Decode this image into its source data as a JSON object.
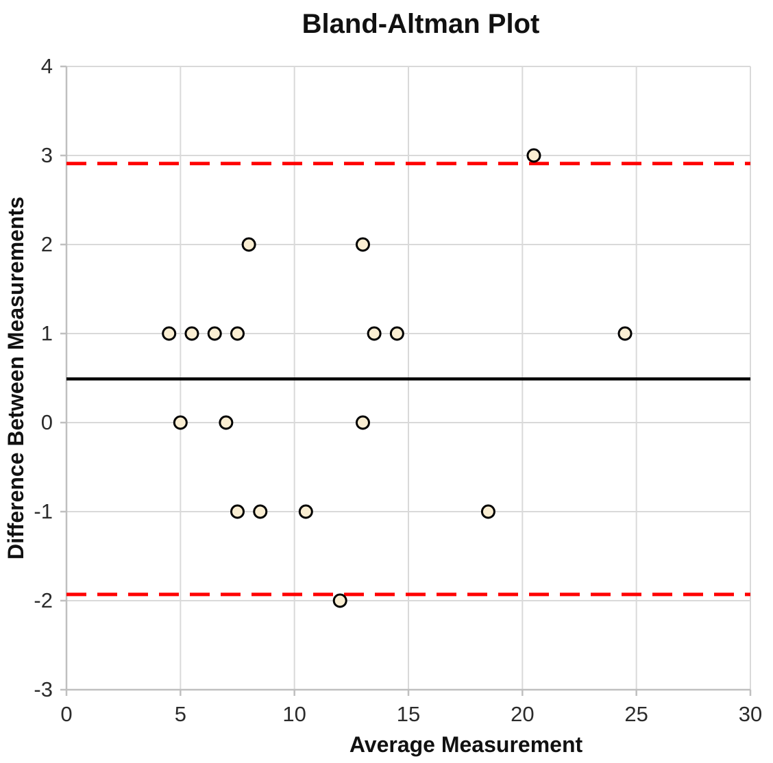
{
  "chart_data": {
    "type": "scatter",
    "title": "Bland-Altman Plot",
    "xlabel": "Average Measurement",
    "ylabel": "Difference Between Measurements",
    "xlim": [
      0,
      30
    ],
    "ylim": [
      -3,
      4
    ],
    "xticks": [
      0,
      5,
      10,
      15,
      20,
      25,
      30
    ],
    "yticks": [
      4,
      3,
      2,
      1,
      0,
      -1,
      -2,
      -3
    ],
    "grid": true,
    "legend": "none",
    "points": [
      {
        "x": 4.5,
        "y": 1
      },
      {
        "x": 5,
        "y": 0
      },
      {
        "x": 5.5,
        "y": 1
      },
      {
        "x": 6.5,
        "y": 1
      },
      {
        "x": 7,
        "y": 0
      },
      {
        "x": 7.5,
        "y": 1
      },
      {
        "x": 7.5,
        "y": -1
      },
      {
        "x": 8,
        "y": 2
      },
      {
        "x": 8.5,
        "y": -1
      },
      {
        "x": 10.5,
        "y": -1
      },
      {
        "x": 12,
        "y": -2
      },
      {
        "x": 13,
        "y": 2
      },
      {
        "x": 13,
        "y": 0
      },
      {
        "x": 13.5,
        "y": 1
      },
      {
        "x": 14.5,
        "y": 1
      },
      {
        "x": 18.5,
        "y": -1
      },
      {
        "x": 20.5,
        "y": 3
      },
      {
        "x": 24.5,
        "y": 1
      }
    ],
    "lines": {
      "mean": {
        "value": 0.49,
        "style": "solid",
        "color": "#000000"
      },
      "upper_loa": {
        "value": 2.91,
        "style": "dashed",
        "color": "#FF0000"
      },
      "lower_loa": {
        "value": -1.93,
        "style": "dashed",
        "color": "#FF0000"
      }
    },
    "marker": {
      "shape": "circle",
      "fill": "#FAEED2",
      "stroke": "#000000"
    },
    "colors": {
      "gridline": "#D9D9D9",
      "axis_line": "#BFBFBF",
      "background": "#FFFFFF"
    }
  }
}
